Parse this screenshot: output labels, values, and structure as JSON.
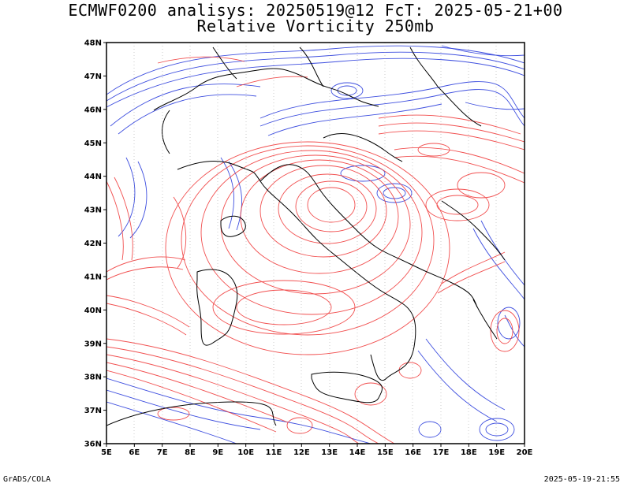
{
  "title_line1": "ECMWF0200 analisys: 20250519@12 FcT: 2025-05-21+00",
  "title_line2": "Relative Vorticity 250mb",
  "lat_labels": [
    "48N",
    "47N",
    "46N",
    "45N",
    "44N",
    "43N",
    "42N",
    "41N",
    "40N",
    "39N",
    "38N",
    "37N",
    "36N"
  ],
  "lon_labels": [
    "5E",
    "6E",
    "7E",
    "8E",
    "9E",
    "10E",
    "11E",
    "12E",
    "13E",
    "14E",
    "15E",
    "16E",
    "17E",
    "18E",
    "19E",
    "20E"
  ],
  "credit": "GrADS/COLA",
  "timestamp": "2025-05-19-21:55",
  "colors": {
    "positive": "#f03c3c",
    "negative": "#2a3cdc",
    "coast": "#000000",
    "frame": "#000000"
  },
  "map": {
    "lon_range": [
      5,
      20
    ],
    "lat_range": [
      36,
      48
    ]
  }
}
